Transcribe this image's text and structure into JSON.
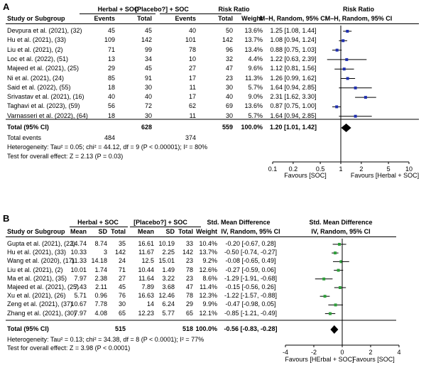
{
  "panel_a": {
    "label": "A",
    "header": {
      "group1": "Herbal + SOC",
      "group2": "[Placebo?] + SOC",
      "effect": "Risk Ratio",
      "effect_method": "M–H, Random, 95% CI",
      "plot_title": "Risk Ratio",
      "plot_method": "M–H, Random, 95% CI",
      "study_col": "Study or Subgroup",
      "events1": "Events",
      "total1": "Total",
      "events2": "Events",
      "total2": "Total",
      "weight": "Weight"
    },
    "total": {
      "label": "Total (95% CI)",
      "n1": "628",
      "n2": "559",
      "weight": "100.0%",
      "ci": "1.20 [1.01, 1.42]"
    },
    "total_events": {
      "label": "Total events",
      "e1": "484",
      "e2": "374"
    },
    "heterogeneity": "Heterogeneity: Tau² = 0.05; chi² = 44.12, df = 9 (P < 0.00001); I² = 80%",
    "overall": "Test for overall effect: Z = 2.13 (P = 0.03)",
    "favours_left": "Favours [SOC]",
    "favours_right": "Favours [Herbal + SOC]"
  },
  "panel_b": {
    "label": "B",
    "header": {
      "group1": "Herbal + SOC",
      "group2": "[Placebo?] + SOC",
      "effect": "Std. Mean Difference",
      "effect_method": "IV, Random, 95% CI",
      "plot_title": "Std. Mean Difference",
      "plot_method": "IV, Random, 95% CI",
      "study_col": "Study or Subgroup",
      "mean1": "Mean",
      "sd1": "SD",
      "total1": "Total",
      "mean2": "Mean",
      "sd2": "SD",
      "total2": "Total",
      "weight": "Weight"
    },
    "total": {
      "label": "Total (95% CI)",
      "n1": "515",
      "n2": "518",
      "weight": "100.0%",
      "ci": "-0.56 [-0.83, -0.28]"
    },
    "heterogeneity": "Heterogeneity: Tau² = 0.13; chi² = 34.38, df = 8 (P < 0.0001); I² = 77%",
    "overall": "Test for overall effect: Z = 3.98 (P < 0.0001)",
    "favours_left": "Favours [HErbal + SOC]",
    "favours_right": "Favours [SOC]"
  },
  "chart_data": [
    {
      "type": "forest",
      "title": "Risk Ratio",
      "scale": "log",
      "xlim": [
        0.1,
        10
      ],
      "ticks": [
        "0.1",
        "0.2",
        "0.5",
        "1",
        "2",
        "5",
        "10"
      ],
      "tick_values": [
        0.1,
        0.2,
        0.5,
        1,
        2,
        5,
        10
      ],
      "marker_color": "#1f2fb0",
      "studies": [
        {
          "name": "Devpura et al. (2021), (32)",
          "e1": "45",
          "n1": "45",
          "e2": "40",
          "n2": "50",
          "weight": "13.6%",
          "ci_text": "1.25 [1.08, 1.44]",
          "est": 1.25,
          "lo": 1.08,
          "hi": 1.44
        },
        {
          "name": "Hu et al. (2021), (33)",
          "e1": "109",
          "n1": "142",
          "e2": "101",
          "n2": "142",
          "weight": "13.7%",
          "ci_text": "1.08 [0.94, 1.24]",
          "est": 1.08,
          "lo": 0.94,
          "hi": 1.24
        },
        {
          "name": "Liu et al. (2021), (2)",
          "e1": "71",
          "n1": "99",
          "e2": "78",
          "n2": "96",
          "weight": "13.4%",
          "ci_text": "0.88 [0.75, 1.03]",
          "est": 0.88,
          "lo": 0.75,
          "hi": 1.03
        },
        {
          "name": "Loc et al. (2022), (51)",
          "e1": "13",
          "n1": "34",
          "e2": "10",
          "n2": "32",
          "weight": "4.4%",
          "ci_text": "1.22 [0.63, 2.39]",
          "est": 1.22,
          "lo": 0.63,
          "hi": 2.39
        },
        {
          "name": "Majeed et al. (2021), (25)",
          "e1": "29",
          "n1": "45",
          "e2": "27",
          "n2": "47",
          "weight": "9.6%",
          "ci_text": "1.12 [0.81, 1.56]",
          "est": 1.12,
          "lo": 0.81,
          "hi": 1.56
        },
        {
          "name": "Ni et al. (2021), (24)",
          "e1": "85",
          "n1": "91",
          "e2": "17",
          "n2": "23",
          "weight": "11.3%",
          "ci_text": "1.26 [0.99, 1.62]",
          "est": 1.26,
          "lo": 0.99,
          "hi": 1.62
        },
        {
          "name": "Said et al. (2022), (55)",
          "e1": "18",
          "n1": "30",
          "e2": "11",
          "n2": "30",
          "weight": "5.7%",
          "ci_text": "1.64 [0.94, 2.85]",
          "est": 1.64,
          "lo": 0.94,
          "hi": 2.85
        },
        {
          "name": "Srivastav et al. (2021), (16)",
          "e1": "40",
          "n1": "40",
          "e2": "17",
          "n2": "40",
          "weight": "9.0%",
          "ci_text": "2.31 [1.62, 3.30]",
          "est": 2.31,
          "lo": 1.62,
          "hi": 3.3
        },
        {
          "name": "Taghavi et al. (2023), (59)",
          "e1": "56",
          "n1": "72",
          "e2": "62",
          "n2": "69",
          "weight": "13.6%",
          "ci_text": "0.87 [0.75, 1.00]",
          "est": 0.87,
          "lo": 0.75,
          "hi": 1.0
        },
        {
          "name": "Varnasseri et al. (2022), (64)",
          "e1": "18",
          "n1": "30",
          "e2": "11",
          "n2": "30",
          "weight": "5.7%",
          "ci_text": "1.64 [0.94, 2.85]",
          "est": 1.64,
          "lo": 0.94,
          "hi": 2.85
        }
      ],
      "pooled": {
        "est": 1.2,
        "lo": 1.01,
        "hi": 1.42
      }
    },
    {
      "type": "forest",
      "title": "Std. Mean Difference",
      "scale": "linear",
      "xlim": [
        -4,
        4
      ],
      "ticks": [
        "-4",
        "-2",
        "0",
        "2",
        "4"
      ],
      "tick_values": [
        -4,
        -2,
        0,
        2,
        4
      ],
      "marker_color": "#2e9e3a",
      "studies": [
        {
          "name": "Gupta et al. (2021), (22)",
          "m1": "14.74",
          "sd1": "8.74",
          "n1": "35",
          "m2": "16.61",
          "sd2": "10.19",
          "n2": "33",
          "weight": "10.4%",
          "ci_text": "-0.20 [-0.67, 0.28]",
          "est": -0.2,
          "lo": -0.67,
          "hi": 0.28
        },
        {
          "name": "Hu et al. (2021), (33)",
          "m1": "10.33",
          "sd1": "3",
          "n1": "142",
          "m2": "11.67",
          "sd2": "2.25",
          "n2": "142",
          "weight": "13.7%",
          "ci_text": "-0.50 [-0.74, -0.27]",
          "est": -0.5,
          "lo": -0.74,
          "hi": -0.27
        },
        {
          "name": "Wang et al. (2020), (17)",
          "m1": "11.33",
          "sd1": "14.18",
          "n1": "24",
          "m2": "12.5",
          "sd2": "15.01",
          "n2": "23",
          "weight": "9.2%",
          "ci_text": "-0.08 [-0.65, 0.49]",
          "est": -0.08,
          "lo": -0.65,
          "hi": 0.49
        },
        {
          "name": "Liu et al. (2021), (2)",
          "m1": "10.01",
          "sd1": "1.74",
          "n1": "71",
          "m2": "10.44",
          "sd2": "1.49",
          "n2": "78",
          "weight": "12.6%",
          "ci_text": "-0.27 [-0.59, 0.06]",
          "est": -0.27,
          "lo": -0.59,
          "hi": 0.06
        },
        {
          "name": "Ma et al. (2021), (35)",
          "m1": "7.97",
          "sd1": "2.38",
          "n1": "27",
          "m2": "11.64",
          "sd2": "3.22",
          "n2": "23",
          "weight": "8.6%",
          "ci_text": "-1.29 [-1.91, -0.68]",
          "est": -1.29,
          "lo": -1.91,
          "hi": -0.68
        },
        {
          "name": "Majeed et al. (2021), (25)",
          "m1": "7.43",
          "sd1": "2.11",
          "n1": "45",
          "m2": "7.89",
          "sd2": "3.68",
          "n2": "47",
          "weight": "11.4%",
          "ci_text": "-0.15 [-0.56, 0.26]",
          "est": -0.15,
          "lo": -0.56,
          "hi": 0.26
        },
        {
          "name": "Xu et al. (2021), (26)",
          "m1": "5.71",
          "sd1": "0.96",
          "n1": "76",
          "m2": "16.63",
          "sd2": "12.46",
          "n2": "78",
          "weight": "12.3%",
          "ci_text": "-1.22 [-1.57, -0.88]",
          "est": -1.22,
          "lo": -1.57,
          "hi": -0.88
        },
        {
          "name": "Zeng et al. (2021), (37)",
          "m1": "10.67",
          "sd1": "7.78",
          "n1": "30",
          "m2": "14",
          "sd2": "6.24",
          "n2": "29",
          "weight": "9.9%",
          "ci_text": "-0.47 [-0.98, 0.05]",
          "est": -0.47,
          "lo": -0.98,
          "hi": 0.05
        },
        {
          "name": "Zhang et al. (2021), (30)",
          "m1": "7.97",
          "sd1": "4.08",
          "n1": "65",
          "m2": "12.23",
          "sd2": "5.77",
          "n2": "65",
          "weight": "12.1%",
          "ci_text": "-0.85 [-1.21, -0.49]",
          "est": -0.85,
          "lo": -1.21,
          "hi": -0.49
        }
      ],
      "pooled": {
        "est": -0.56,
        "lo": -0.83,
        "hi": -0.28
      }
    }
  ]
}
